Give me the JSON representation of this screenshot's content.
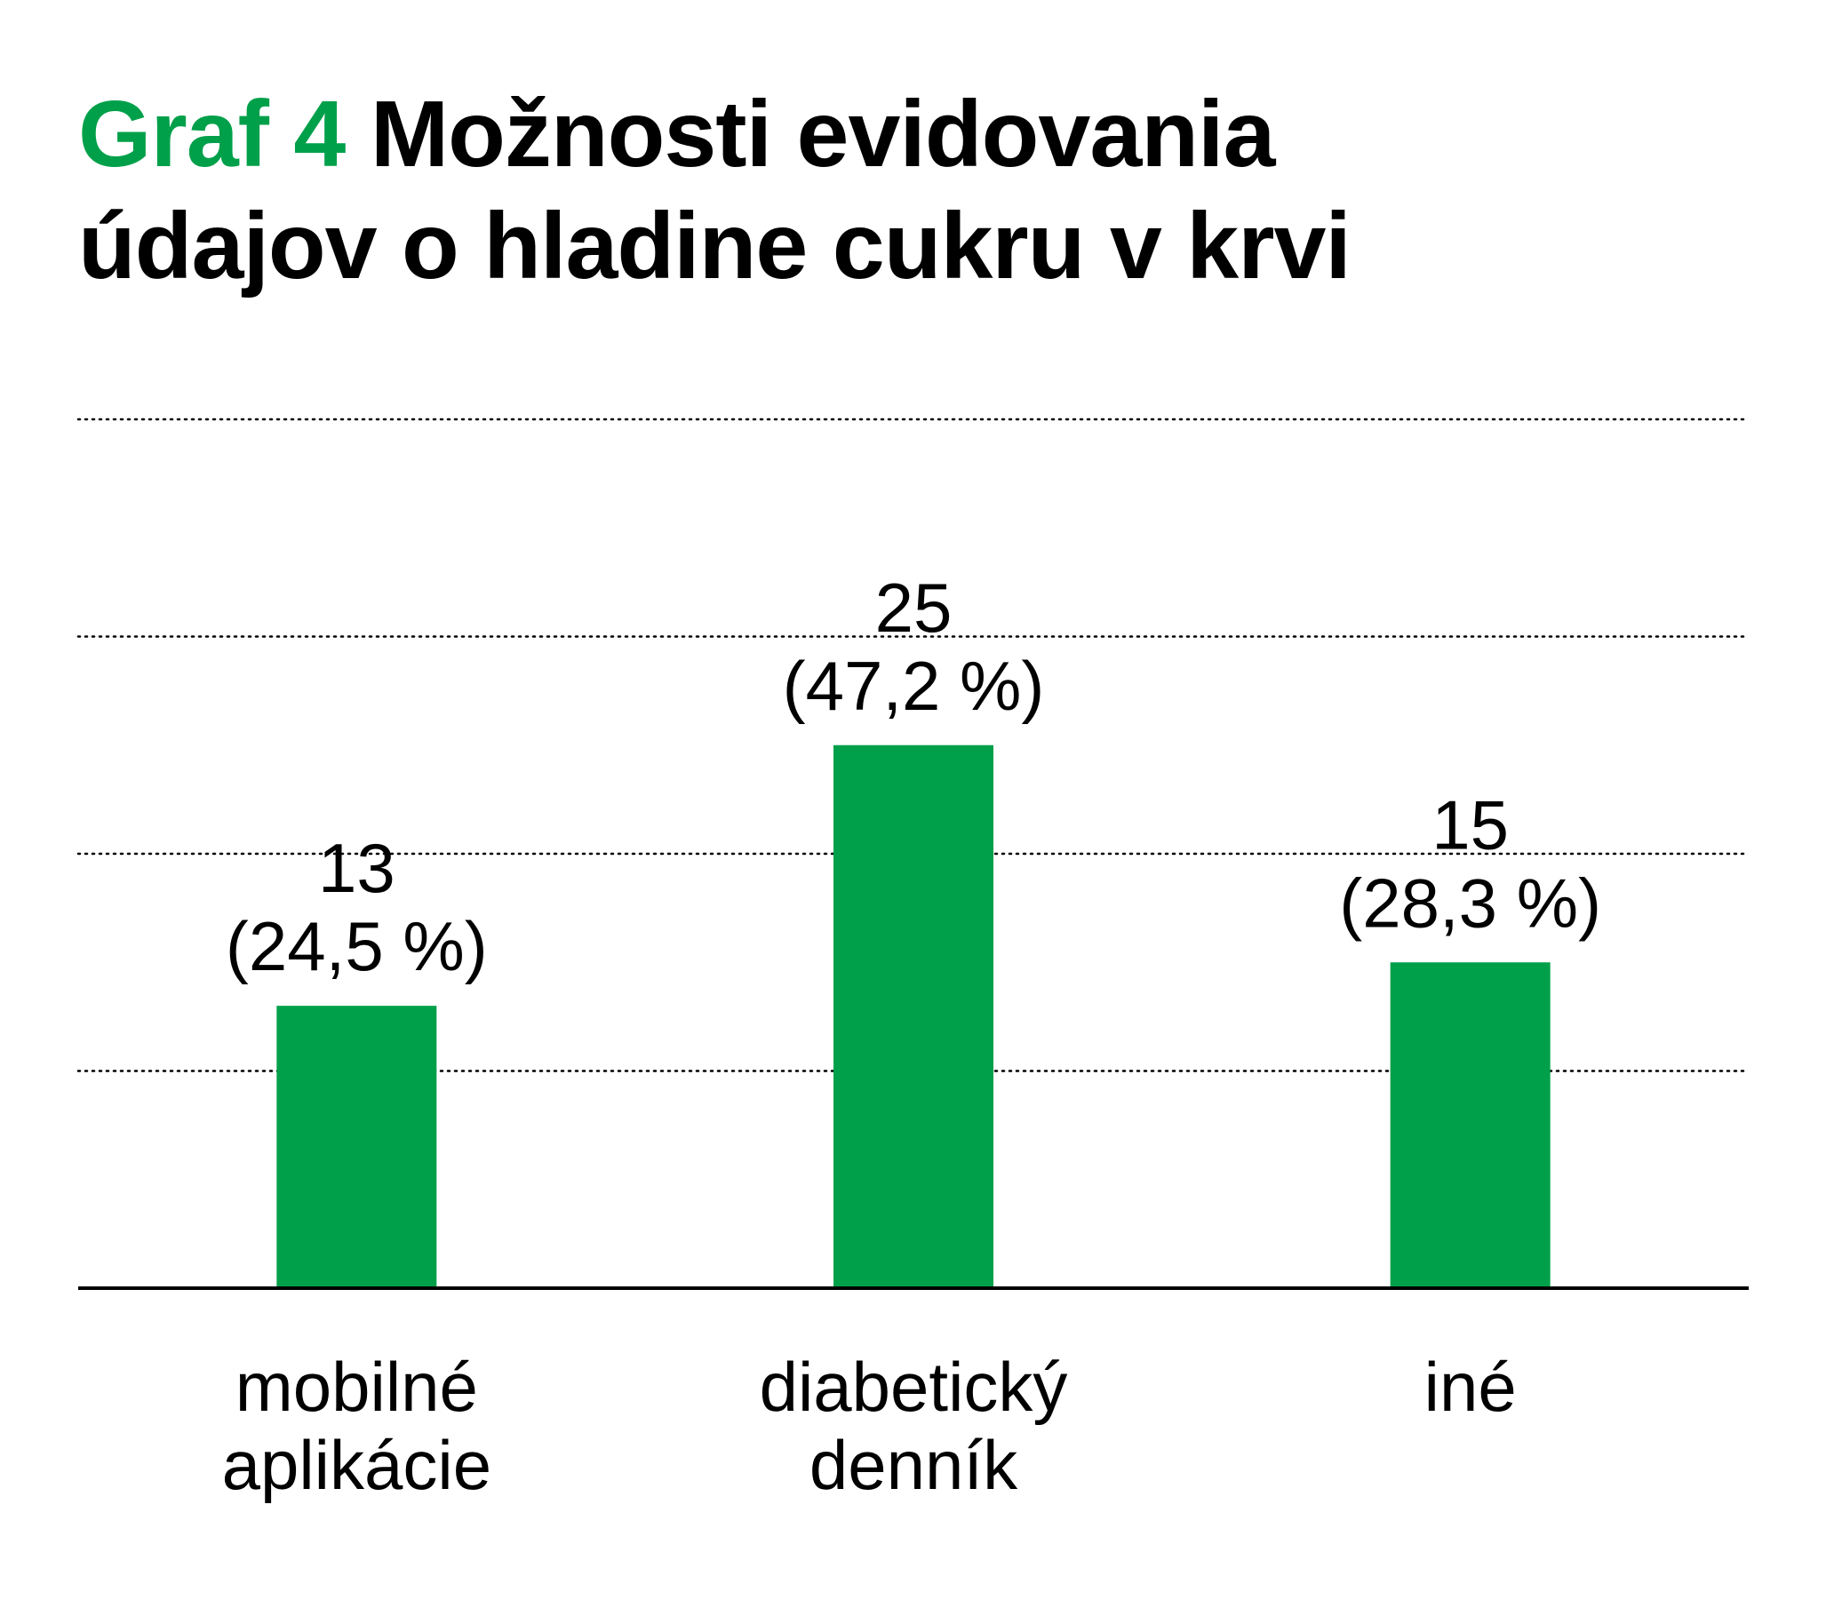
{
  "colors": {
    "accent": "#00a04a",
    "text": "#000000",
    "grid": "#000000"
  },
  "chart_data": {
    "type": "bar",
    "title_prefix": "Graf 4",
    "title": "Možnosti evidovania údajov o hladine cukru v krvi",
    "title_lines": [
      "Možnosti evidovania",
      "údajov o hladine cukru v krvi"
    ],
    "categories": [
      [
        "mobilné",
        "aplikácie"
      ],
      [
        "diabetický",
        "denník"
      ],
      [
        "iné"
      ]
    ],
    "values": [
      13,
      25,
      15
    ],
    "value_labels": [
      [
        "13",
        "(24,5 %)"
      ],
      [
        "25",
        "(47,2 %)"
      ],
      [
        "15",
        "(28,3 %)"
      ]
    ],
    "ylim": [
      0,
      40
    ],
    "gridlines": [
      10,
      20,
      30,
      40
    ],
    "grid": true,
    "legend": "none"
  }
}
